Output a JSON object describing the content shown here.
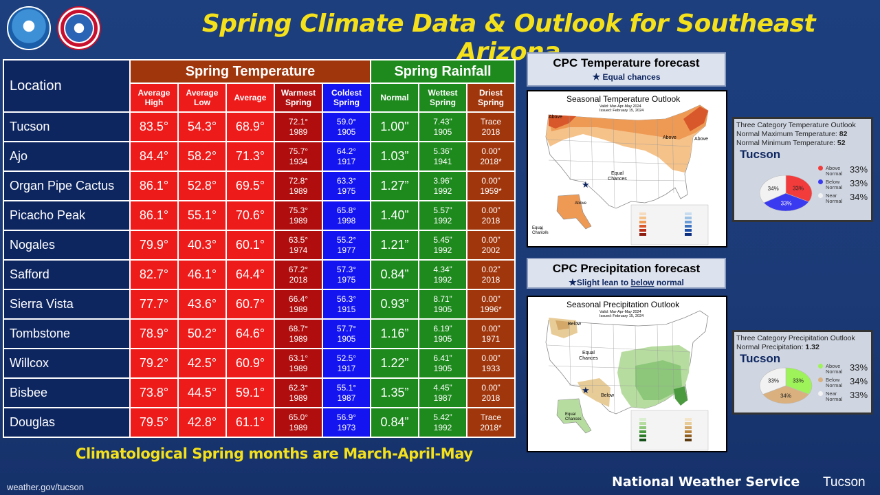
{
  "title": "Spring Climate Data & Outlook for Southeast Arizona",
  "logos": {
    "noaa": "NOAA",
    "nws": "NATIONAL WEATHER SERVICE"
  },
  "table": {
    "location_header": "Location",
    "temp_header": "Spring Temperature",
    "rain_header": "Spring Rainfall",
    "cols": {
      "avg_high": [
        "Average",
        "High"
      ],
      "avg_low": [
        "Average",
        "Low"
      ],
      "avg": "Average",
      "warmest": [
        "Warmest",
        "Spring"
      ],
      "coldest": [
        "Coldest",
        "Spring"
      ],
      "normal": "Normal",
      "wettest": [
        "Wettest",
        "Spring"
      ],
      "driest": [
        "Driest",
        "Spring"
      ]
    },
    "rows": [
      {
        "loc": "Tucson",
        "hi": "83.5°",
        "lo": "54.3°",
        "avg": "68.9°",
        "warm": "72.1°",
        "warm_yr": "1989",
        "cold": "59.0°",
        "cold_yr": "1905",
        "normal": "1.00\"",
        "wet": "7.43\"",
        "wet_yr": "1905",
        "dry": "Trace",
        "dry_yr": "2018"
      },
      {
        "loc": "Ajo",
        "hi": "84.4°",
        "lo": "58.2°",
        "avg": "71.3°",
        "warm": "75.7°",
        "warm_yr": "1934",
        "cold": "64.2°",
        "cold_yr": "1917",
        "normal": "1.03”",
        "wet": "5.36”",
        "wet_yr": "1941",
        "dry": "0.00”",
        "dry_yr": "2018*"
      },
      {
        "loc": "Organ Pipe Cactus",
        "hi": "86.1°",
        "lo": "52.8°",
        "avg": "69.5°",
        "warm": "72.8°",
        "warm_yr": "1989",
        "cold": "63.3°",
        "cold_yr": "1975",
        "normal": "1.27”",
        "wet": "3.96”",
        "wet_yr": "1992",
        "dry": "0.00”",
        "dry_yr": "1959*"
      },
      {
        "loc": "Picacho Peak",
        "hi": "86.1°",
        "lo": "55.1°",
        "avg": "70.6°",
        "warm": "75.3°",
        "warm_yr": "1989",
        "cold": "65.8°",
        "cold_yr": "1998",
        "normal": "1.40”",
        "wet": "5.57”",
        "wet_yr": "1992",
        "dry": "0.00”",
        "dry_yr": "2018"
      },
      {
        "loc": "Nogales",
        "hi": "79.9°",
        "lo": "40.3°",
        "avg": "60.1°",
        "warm": "63.5°",
        "warm_yr": "1974",
        "cold": "55.2°",
        "cold_yr": "1977",
        "normal": "1.21”",
        "wet": "5.45”",
        "wet_yr": "1992",
        "dry": "0.00”",
        "dry_yr": "2002"
      },
      {
        "loc": "Safford",
        "hi": "82.7°",
        "lo": "46.1°",
        "avg": "64.4°",
        "warm": "67.2°",
        "warm_yr": "2018",
        "cold": "57.3°",
        "cold_yr": "1975",
        "normal": "0.84”",
        "wet": "4.34”",
        "wet_yr": "1992",
        "dry": "0.02”",
        "dry_yr": "2018"
      },
      {
        "loc": "Sierra Vista",
        "hi": "77.7°",
        "lo": "43.6°",
        "avg": "60.7°",
        "warm": "66.4°",
        "warm_yr": "1989",
        "cold": "56.3°",
        "cold_yr": "1915",
        "normal": "0.93”",
        "wet": "8.71”",
        "wet_yr": "1905",
        "dry": "0.00”",
        "dry_yr": "1996*"
      },
      {
        "loc": "Tombstone",
        "hi": "78.9°",
        "lo": "50.2°",
        "avg": "64.6°",
        "warm": "68.7°",
        "warm_yr": "1989",
        "cold": "57.7°",
        "cold_yr": "1905",
        "normal": "1.16”",
        "wet": "6.19”",
        "wet_yr": "1905",
        "dry": "0.00”",
        "dry_yr": "1971"
      },
      {
        "loc": "Willcox",
        "hi": "79.2°",
        "lo": "42.5°",
        "avg": "60.9°",
        "warm": "63.1°",
        "warm_yr": "1989",
        "cold": "52.5°",
        "cold_yr": "1917",
        "normal": "1.22”",
        "wet": "6.41”",
        "wet_yr": "1905",
        "dry": "0.00”",
        "dry_yr": "1933"
      },
      {
        "loc": "Bisbee",
        "hi": "73.8°",
        "lo": "44.5°",
        "avg": "59.1°",
        "warm": "62.3°",
        "warm_yr": "1989",
        "cold": "55.1°",
        "cold_yr": "1987",
        "normal": "1.35”",
        "wet": "4.45”",
        "wet_yr": "1987",
        "dry": "0.00”",
        "dry_yr": "2018"
      },
      {
        "loc": "Douglas",
        "hi": "79.5°",
        "lo": "42.8°",
        "avg": "61.1°",
        "warm": "65.0°",
        "warm_yr": "1989",
        "cold": "56.9°",
        "cold_yr": "1973",
        "normal": "0.84”",
        "wet": "5.42”",
        "wet_yr": "1992",
        "dry": "Trace",
        "dry_yr": "2018*"
      }
    ]
  },
  "footnote": "Climatological Spring months are March-April-May",
  "url": "weather.gov/tucson",
  "nws_name": "National Weather Service",
  "nws_office": "Tucson",
  "temp_forecast": {
    "title": "CPC Temperature forecast",
    "subtitle": "Equal chances",
    "map_title": "Seasonal Temperature Outlook",
    "valid": "Valid:  Mar-Apr-May 2024",
    "issued": "Issued:  February 15, 2024",
    "labels": {
      "above": "Above",
      "equal": "Equal Chances",
      "equal2": "Equal Chances"
    },
    "colors": {
      "above_light": "#f5c28a",
      "above_mid": "#ee9a55",
      "above_dark": "#d8582c"
    }
  },
  "precip_forecast": {
    "title": "CPC Precipitation forecast",
    "subtitle_prefix": "Slight lean to ",
    "subtitle_emph": "below",
    "subtitle_suffix": " normal",
    "map_title": "Seasonal Precipitation Outlook",
    "valid": "Valid:  Mar-Apr-May 2024",
    "issued": "Issued:  February 15, 2024",
    "labels": {
      "below": "Below",
      "equal": "Equal Chances",
      "equal2": "Equal Chances"
    },
    "colors": {
      "below_light": "#e8cc98",
      "above_light": "#b7dca0",
      "above_mid": "#8cc77a"
    }
  },
  "temp_probs": {
    "header": "Three Category Temperature Outlook",
    "max_label": "Normal Maximum Temperature: ",
    "max_value": "82",
    "min_label": "Normal Minimum Temperature: ",
    "min_value": "52",
    "city": "Tucson",
    "slices": [
      {
        "name": [
          "Above",
          "Normal"
        ],
        "pct": "33%",
        "value": 33,
        "color": "#f23b3b"
      },
      {
        "name": [
          "Below",
          "Normal"
        ],
        "pct": "33%",
        "value": 33,
        "color": "#3a3af0"
      },
      {
        "name": [
          "Near",
          "Normal"
        ],
        "pct": "34%",
        "value": 34,
        "color": "#f2f2f2"
      }
    ]
  },
  "precip_probs": {
    "header": "Three Category Precipitation Outlook",
    "normal_label": "Normal Precipitation: ",
    "normal_value": "1.32",
    "city": "Tucson",
    "slices": [
      {
        "name": [
          "Above",
          "Normal"
        ],
        "pct": "33%",
        "value": 33,
        "color": "#9ef25a"
      },
      {
        "name": [
          "Below",
          "Normal"
        ],
        "pct": "34%",
        "value": 34,
        "color": "#d9b07e"
      },
      {
        "name": [
          "Near",
          "Normal"
        ],
        "pct": "33%",
        "value": 33,
        "color": "#f2f2f2"
      }
    ]
  }
}
